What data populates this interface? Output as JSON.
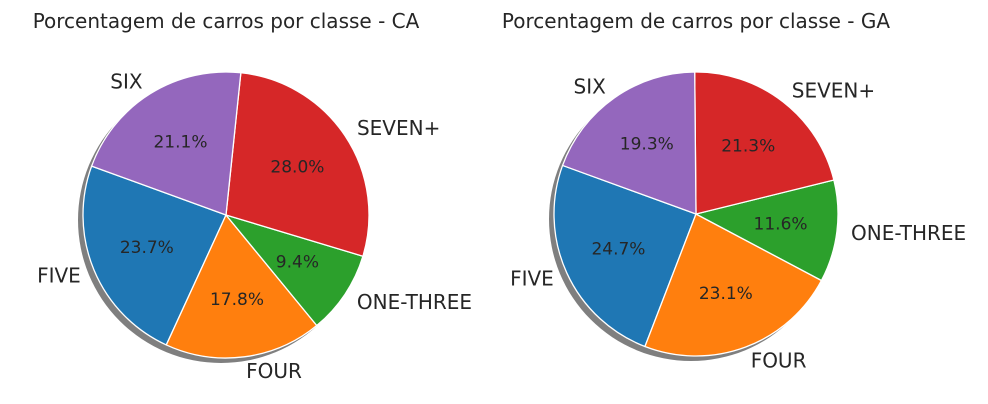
{
  "chart_data": [
    {
      "type": "pie",
      "title": "Porcentagem de carros por classe - CA",
      "categories": [
        "FIVE",
        "FOUR",
        "ONE-THREE",
        "SEVEN+",
        "SIX"
      ],
      "values": [
        23.7,
        17.8,
        9.4,
        28.0,
        21.1
      ],
      "value_labels": [
        "23.7%",
        "17.8%",
        "9.4%",
        "28.0%",
        "21.1%"
      ],
      "colors": [
        "#1f77b4",
        "#ff7f0e",
        "#2ca02c",
        "#d62728",
        "#9467bd"
      ],
      "start_angle_deg": 160,
      "direction": "counterclockwise",
      "shadow": true
    },
    {
      "type": "pie",
      "title": "Porcentagem de carros por classe - GA",
      "categories": [
        "FIVE",
        "FOUR",
        "ONE-THREE",
        "SEVEN+",
        "SIX"
      ],
      "values": [
        24.7,
        23.1,
        11.6,
        21.3,
        19.3
      ],
      "value_labels": [
        "24.7%",
        "23.1%",
        "11.6%",
        "21.3%",
        "19.3%"
      ],
      "colors": [
        "#1f77b4",
        "#ff7f0e",
        "#2ca02c",
        "#d62728",
        "#9467bd"
      ],
      "start_angle_deg": 160,
      "direction": "counterclockwise",
      "shadow": true
    }
  ]
}
